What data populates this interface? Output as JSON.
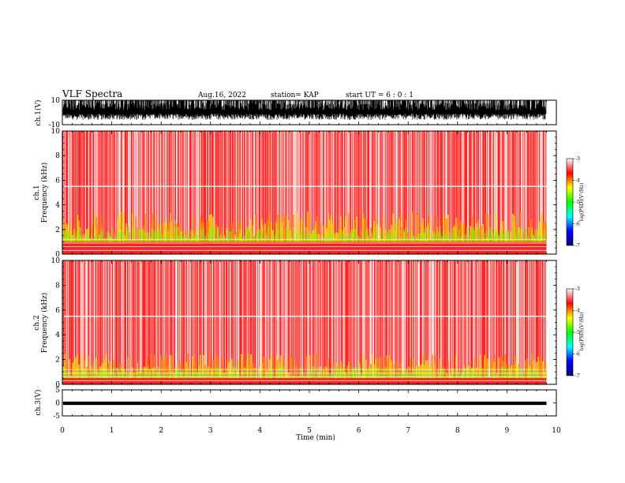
{
  "header": {
    "title": "VLF Spectra",
    "date": "Aug.16, 2022",
    "station": "station= KAP",
    "start": "start  UT  =  6 : 0  : 1"
  },
  "chart_data": [
    {
      "type": "line",
      "panel": "ch1-waveform",
      "ylabel": "ch.1(V)",
      "ylim": [
        -10,
        10
      ],
      "ytick_labels": [
        "10",
        "-10"
      ],
      "xlim": [
        0,
        10
      ],
      "color": "#000000",
      "description_values": {
        "typical_range": [
          -5,
          10
        ]
      }
    },
    {
      "type": "heatmap",
      "panel": "ch1-spectrogram",
      "ylabel_channel": "ch.1",
      "ylabel": "Frequency (kHz)",
      "ylim": [
        0,
        10
      ],
      "ytick_labels": [
        "0",
        "2",
        "4",
        "6",
        "8",
        "10"
      ],
      "xlim": [
        0,
        10
      ],
      "colorbar": {
        "label": "log(PSD)(V²/Hz)",
        "range": [
          -7,
          -3
        ],
        "tick_labels": [
          "-3",
          "-4",
          "-5",
          "-6",
          "-7"
        ],
        "colors": [
          "#000080",
          "#0000ff",
          "#00ffff",
          "#00ff00",
          "#ffff00",
          "#ff0000",
          "#ffffff"
        ]
      },
      "bands": [
        {
          "kHz": [
            0,
            1.0
          ],
          "level": "high"
        },
        {
          "kHz": [
            1.0,
            3.5
          ],
          "level": "medium-high"
        },
        {
          "kHz": [
            3.5,
            10
          ],
          "level": "medium"
        }
      ],
      "white_line_kHz": 5.5
    },
    {
      "type": "heatmap",
      "panel": "ch2-spectrogram",
      "ylabel_channel": "ch.2",
      "ylabel": "Frequency (kHz)",
      "ylim": [
        0,
        10
      ],
      "ytick_labels": [
        "0",
        "2",
        "4",
        "6",
        "8",
        "10"
      ],
      "xlim": [
        0,
        10
      ],
      "colorbar": {
        "label": "log(PSD)(V²/Hz)",
        "range": [
          -7,
          -3
        ],
        "tick_labels": [
          "-3",
          "-4",
          "-5",
          "-6",
          "-7"
        ],
        "colors": [
          "#000080",
          "#0000ff",
          "#00ffff",
          "#00ff00",
          "#ffff00",
          "#ff0000",
          "#ffffff"
        ]
      },
      "bands": [
        {
          "kHz": [
            0,
            0.5
          ],
          "level": "high"
        },
        {
          "kHz": [
            0.5,
            2.5
          ],
          "level": "medium-high"
        },
        {
          "kHz": [
            2.5,
            10
          ],
          "level": "medium"
        }
      ],
      "white_line_kHz": 5.5
    },
    {
      "type": "line",
      "panel": "ch3-waveform",
      "ylabel": "ch.3(V)",
      "ylim": [
        -5,
        5
      ],
      "ytick_labels": [
        "5",
        "0",
        "-5"
      ],
      "xlim": [
        0,
        10
      ],
      "color": "#000000",
      "description_values": {
        "typical_range": [
          -0.8,
          0.5
        ]
      }
    }
  ],
  "xaxis": {
    "label": "Time  (min)",
    "ticks": [
      "0",
      "1",
      "2",
      "3",
      "4",
      "5",
      "6",
      "7",
      "8",
      "9",
      "10"
    ],
    "data_end_min": 9.8
  }
}
